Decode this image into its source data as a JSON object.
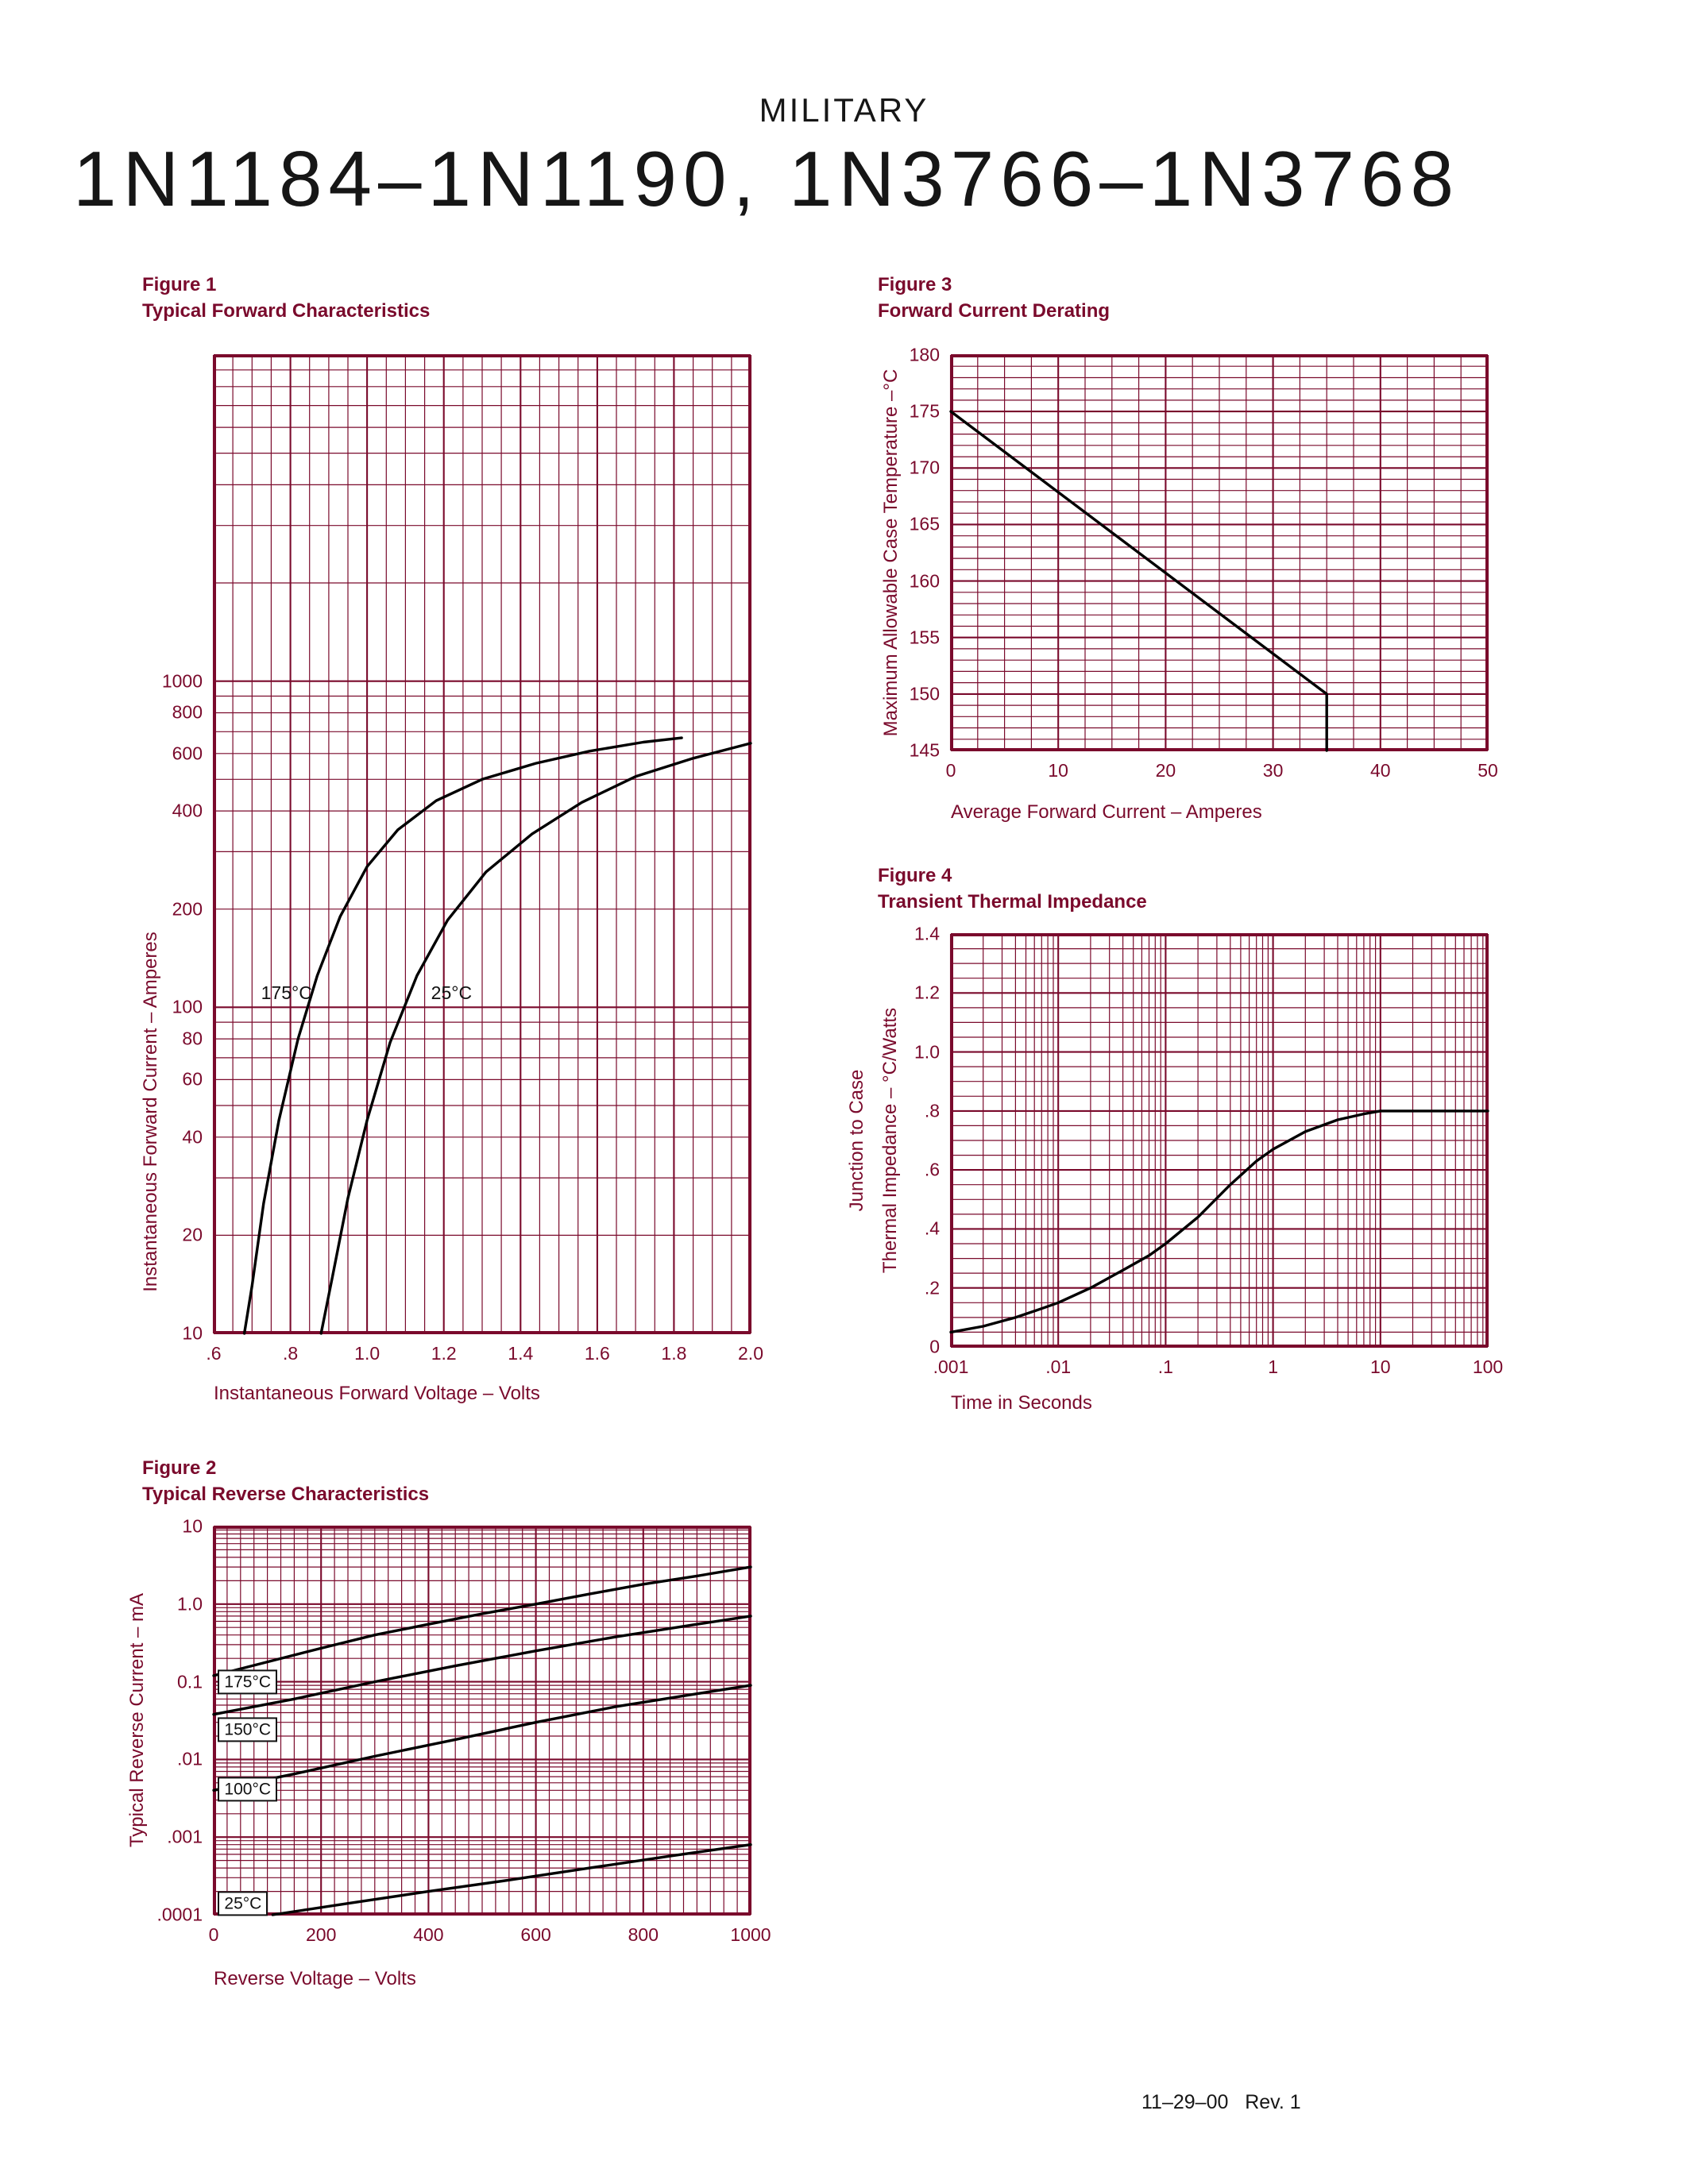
{
  "page": {
    "kicker": "MILITARY",
    "title": "1N1184–1N1190, 1N3766–1N3768",
    "footer": "11–29–00   Rev. 1"
  },
  "colors": {
    "accent": "#7a0a2c",
    "grid": "#7a0a2c",
    "curve": "#000000"
  },
  "figures": {
    "fig1": {
      "label": "Figure 1",
      "title": "Typical Forward Characteristics",
      "xlabel": "Instantaneous Forward Voltage – Volts",
      "ylabel": "Instantaneous Forward Current – Amperes"
    },
    "fig2": {
      "label": "Figure 2",
      "title": "Typical Reverse Characteristics",
      "xlabel": "Reverse Voltage – Volts",
      "ylabel": "Typical Reverse Current – mA"
    },
    "fig3": {
      "label": "Figure 3",
      "title": "Forward Current Derating",
      "xlabel": "Average Forward Current – Amperes",
      "ylabel": "Maximum Allowable Case Temperature –°C"
    },
    "fig4": {
      "label": "Figure 4",
      "title": "Transient Thermal Impedance",
      "xlabel": "Time in Seconds",
      "ylabel_line1": "Junction to Case",
      "ylabel_line2": "Thermal Impedance – °C/Watts"
    }
  },
  "chart_data": [
    {
      "id": "fig1",
      "type": "line",
      "title": "Typical Forward Characteristics",
      "xlabel": "Instantaneous Forward Voltage – Volts",
      "ylabel": "Instantaneous Forward Current – Amperes",
      "x_axis": {
        "scale": "linear",
        "min": 0.6,
        "max": 2.0,
        "major": 0.2,
        "minor": 0.05,
        "ticks": [
          ".6",
          ".8",
          "1.0",
          "1.2",
          "1.4",
          "1.6",
          "1.8",
          "2.0"
        ],
        "tick_values": [
          0.6,
          0.8,
          1.0,
          1.2,
          1.4,
          1.6,
          1.8,
          2.0
        ]
      },
      "y_axis": {
        "scale": "log",
        "min": 10,
        "max": 10000,
        "ticks": [
          "1000",
          "800",
          "600",
          "400",
          "200",
          "100",
          "80",
          "60",
          "40",
          "20",
          "10"
        ],
        "tick_values": [
          1000,
          800,
          600,
          400,
          200,
          100,
          80,
          60,
          40,
          20,
          10
        ]
      },
      "series": [
        {
          "name": "175°C",
          "label": "175°C",
          "label_pos": [
            0.79,
            110
          ],
          "label_box": false,
          "points": [
            [
              0.68,
              10
            ],
            [
              0.7,
              14
            ],
            [
              0.73,
              25
            ],
            [
              0.77,
              45
            ],
            [
              0.82,
              80
            ],
            [
              0.87,
              125
            ],
            [
              0.93,
              190
            ],
            [
              1.0,
              270
            ],
            [
              1.08,
              350
            ],
            [
              1.18,
              430
            ],
            [
              1.3,
              500
            ],
            [
              1.44,
              560
            ],
            [
              1.58,
              610
            ],
            [
              1.72,
              650
            ],
            [
              1.82,
              670
            ]
          ]
        },
        {
          "name": "25°C",
          "label": "25°C",
          "label_pos": [
            1.22,
            110
          ],
          "label_box": false,
          "points": [
            [
              0.88,
              10
            ],
            [
              0.91,
              15
            ],
            [
              0.95,
              26
            ],
            [
              1.0,
              45
            ],
            [
              1.06,
              78
            ],
            [
              1.13,
              125
            ],
            [
              1.21,
              185
            ],
            [
              1.31,
              260
            ],
            [
              1.43,
              340
            ],
            [
              1.56,
              425
            ],
            [
              1.7,
              510
            ],
            [
              1.85,
              580
            ],
            [
              2.0,
              645
            ]
          ]
        }
      ]
    },
    {
      "id": "fig3",
      "type": "line",
      "title": "Forward Current Derating",
      "xlabel": "Average Forward Current – Amperes",
      "ylabel": "Maximum Allowable Case Temperature –°C",
      "x_axis": {
        "scale": "linear",
        "min": 0,
        "max": 50,
        "major": 10,
        "minor": 2.5,
        "ticks": [
          "0",
          "10",
          "20",
          "30",
          "40",
          "50"
        ],
        "tick_values": [
          0,
          10,
          20,
          30,
          40,
          50
        ]
      },
      "y_axis": {
        "scale": "linear",
        "min": 145,
        "max": 180,
        "major": 5,
        "minor": 1,
        "ticks": [
          "180",
          "175",
          "170",
          "165",
          "160",
          "155",
          "150",
          "145"
        ],
        "tick_values": [
          180,
          175,
          170,
          165,
          160,
          155,
          150,
          145
        ]
      },
      "series": [
        {
          "points": [
            [
              0,
              175
            ],
            [
              35,
              150
            ],
            [
              35,
              145
            ]
          ]
        }
      ]
    },
    {
      "id": "fig4",
      "type": "line",
      "title": "Transient Thermal Impedance",
      "xlabel": "Time in Seconds",
      "ylabel": "Junction to Case Thermal Impedance – °C/Watts",
      "x_axis": {
        "scale": "log",
        "min": 0.001,
        "max": 100,
        "ticks": [
          ".001",
          ".01",
          ".1",
          "1",
          "10",
          "100"
        ],
        "tick_values": [
          0.001,
          0.01,
          0.1,
          1,
          10,
          100
        ]
      },
      "y_axis": {
        "scale": "linear",
        "min": 0,
        "max": 1.4,
        "major": 0.2,
        "minor": 0.05,
        "ticks": [
          "1.4",
          "1.2",
          "1.0",
          ".8",
          ".6",
          ".4",
          ".2",
          "0"
        ],
        "tick_values": [
          1.4,
          1.2,
          1.0,
          0.8,
          0.6,
          0.4,
          0.2,
          0
        ]
      },
      "series": [
        {
          "points": [
            [
              0.001,
              0.05
            ],
            [
              0.002,
              0.07
            ],
            [
              0.004,
              0.1
            ],
            [
              0.007,
              0.13
            ],
            [
              0.01,
              0.15
            ],
            [
              0.02,
              0.2
            ],
            [
              0.04,
              0.26
            ],
            [
              0.07,
              0.31
            ],
            [
              0.1,
              0.35
            ],
            [
              0.2,
              0.44
            ],
            [
              0.4,
              0.55
            ],
            [
              0.7,
              0.63
            ],
            [
              1,
              0.67
            ],
            [
              2,
              0.73
            ],
            [
              4,
              0.77
            ],
            [
              7,
              0.79
            ],
            [
              10,
              0.8
            ],
            [
              30,
              0.8
            ],
            [
              100,
              0.8
            ]
          ]
        }
      ]
    },
    {
      "id": "fig2",
      "type": "line",
      "title": "Typical Reverse Characteristics",
      "xlabel": "Reverse Voltage – Volts",
      "ylabel": "Typical Reverse Current – mA",
      "x_axis": {
        "scale": "linear",
        "min": 0,
        "max": 1000,
        "major": 200,
        "minor": 25,
        "ticks": [
          "0",
          "200",
          "400",
          "600",
          "800",
          "1000"
        ],
        "tick_values": [
          0,
          200,
          400,
          600,
          800,
          1000
        ]
      },
      "y_axis": {
        "scale": "log",
        "min": 0.0001,
        "max": 10,
        "ticks": [
          "10",
          "1.0",
          "0.1",
          ".01",
          ".001",
          ".0001"
        ],
        "tick_values": [
          10,
          1,
          0.1,
          0.01,
          0.001,
          0.0001
        ]
      },
      "series": [
        {
          "name": "175°C",
          "label": "175°C",
          "label_pos": [
            8,
            0.1
          ],
          "label_box": true,
          "points": [
            [
              0,
              0.12
            ],
            [
              100,
              0.18
            ],
            [
              200,
              0.27
            ],
            [
              300,
              0.4
            ],
            [
              400,
              0.55
            ],
            [
              500,
              0.75
            ],
            [
              600,
              1.0
            ],
            [
              700,
              1.35
            ],
            [
              800,
              1.8
            ],
            [
              900,
              2.3
            ],
            [
              1000,
              3.0
            ]
          ]
        },
        {
          "name": "150°C",
          "label": "150°C",
          "label_pos": [
            8,
            0.024
          ],
          "label_box": true,
          "points": [
            [
              0,
              0.038
            ],
            [
              150,
              0.06
            ],
            [
              300,
              0.1
            ],
            [
              450,
              0.16
            ],
            [
              600,
              0.25
            ],
            [
              750,
              0.38
            ],
            [
              900,
              0.55
            ],
            [
              1000,
              0.7
            ]
          ]
        },
        {
          "name": "100°C",
          "label": "100°C",
          "label_pos": [
            8,
            0.0041
          ],
          "label_box": true,
          "points": [
            [
              0,
              0.004
            ],
            [
              150,
              0.0065
            ],
            [
              300,
              0.011
            ],
            [
              450,
              0.018
            ],
            [
              600,
              0.03
            ],
            [
              750,
              0.048
            ],
            [
              900,
              0.07
            ],
            [
              1000,
              0.09
            ]
          ]
        },
        {
          "name": "25°C",
          "label": "25°C",
          "label_pos": [
            8,
            0.00014
          ],
          "label_box": true,
          "points": [
            [
              110,
              0.0001
            ],
            [
              250,
              0.00014
            ],
            [
              400,
              0.0002
            ],
            [
              550,
              0.00028
            ],
            [
              700,
              0.0004
            ],
            [
              850,
              0.00057
            ],
            [
              1000,
              0.0008
            ]
          ]
        }
      ]
    }
  ]
}
